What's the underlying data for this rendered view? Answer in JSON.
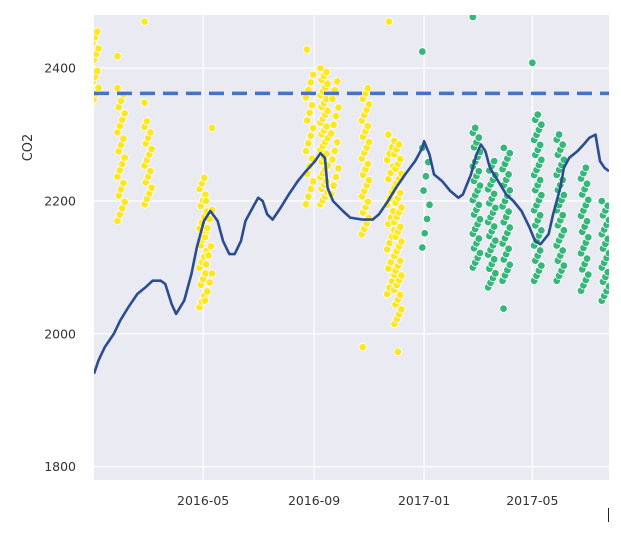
{
  "chart_data": {
    "type": "scatter",
    "title": "",
    "xlabel": "",
    "ylabel": "CO2",
    "xlim": [
      "2016-01-01",
      "2017-07-25"
    ],
    "ylim": [
      1780,
      2480
    ],
    "yticks": [
      1800,
      2000,
      2200,
      2400
    ],
    "xticks": [
      {
        "date": "2016-05-01",
        "label": "2016-05"
      },
      {
        "date": "2016-09-01",
        "label": "2016-09"
      },
      {
        "date": "2017-01-01",
        "label": "2017-01"
      },
      {
        "date": "2017-05-01",
        "label": "2017-05"
      }
    ],
    "grid": true,
    "colors": {
      "background": "#eaeaf2",
      "grid": "#ffffff",
      "yellow_points": "#fde725",
      "green_points": "#35b779",
      "line": "#2a4d8f",
      "threshold": "#4472c4"
    },
    "threshold": {
      "y": 2362,
      "style": "dashed"
    },
    "point_clusters": [
      {
        "date": "2016-01-02",
        "ymin": 2345,
        "ymax": 2455,
        "n": 14,
        "color": "yellow"
      },
      {
        "date": "2016-01-31",
        "ymin": 2170,
        "ymax": 2370,
        "n": 22,
        "color": "yellow"
      },
      {
        "date": "2016-01-31",
        "ymin": 2418,
        "ymax": 2422,
        "n": 1,
        "color": "yellow"
      },
      {
        "date": "2016-03-01",
        "ymin": 2195,
        "ymax": 2320,
        "n": 16,
        "color": "yellow"
      },
      {
        "date": "2016-03-01",
        "ymin": 2348,
        "ymax": 2350,
        "n": 1,
        "color": "yellow"
      },
      {
        "date": "2016-03-01",
        "ymin": 2470,
        "ymax": 2472,
        "n": 1,
        "color": "yellow"
      },
      {
        "date": "2016-05-01",
        "ymin": 2040,
        "ymax": 2235,
        "n": 24,
        "color": "yellow"
      },
      {
        "date": "2016-05-07",
        "ymin": 2050,
        "ymax": 2200,
        "n": 12,
        "color": "yellow"
      },
      {
        "date": "2016-05-15",
        "ymin": 2310,
        "ymax": 2312,
        "n": 1,
        "color": "yellow"
      },
      {
        "date": "2016-08-27",
        "ymin": 2195,
        "ymax": 2390,
        "n": 18,
        "color": "yellow"
      },
      {
        "date": "2016-08-28",
        "ymin": 2428,
        "ymax": 2430,
        "n": 1,
        "color": "yellow"
      },
      {
        "date": "2016-09-12",
        "ymin": 2195,
        "ymax": 2400,
        "n": 36,
        "color": "yellow"
      },
      {
        "date": "2016-09-24",
        "ymin": 2210,
        "ymax": 2380,
        "n": 14,
        "color": "yellow"
      },
      {
        "date": "2016-10-28",
        "ymin": 2150,
        "ymax": 2370,
        "n": 28,
        "color": "yellow"
      },
      {
        "date": "2016-10-29",
        "ymin": 1980,
        "ymax": 1982,
        "n": 1,
        "color": "yellow"
      },
      {
        "date": "2016-11-25",
        "ymin": 2060,
        "ymax": 2300,
        "n": 26,
        "color": "yellow"
      },
      {
        "date": "2016-12-03",
        "ymin": 2015,
        "ymax": 2285,
        "n": 38,
        "color": "yellow"
      },
      {
        "date": "2016-12-07",
        "ymin": 1973,
        "ymax": 1975,
        "n": 1,
        "color": "yellow"
      },
      {
        "date": "2016-11-27",
        "ymin": 2470,
        "ymax": 2472,
        "n": 1,
        "color": "yellow"
      },
      {
        "date": "2017-01-03",
        "ymin": 2130,
        "ymax": 2280,
        "n": 8,
        "color": "green"
      },
      {
        "date": "2017-01-03",
        "ymin": 2425,
        "ymax": 2427,
        "n": 1,
        "color": "green"
      },
      {
        "date": "2017-02-28",
        "ymin": 2100,
        "ymax": 2310,
        "n": 30,
        "color": "green"
      },
      {
        "date": "2017-02-28",
        "ymin": 2477,
        "ymax": 2479,
        "n": 1,
        "color": "green"
      },
      {
        "date": "2017-03-17",
        "ymin": 2070,
        "ymax": 2260,
        "n": 28,
        "color": "green"
      },
      {
        "date": "2017-04-02",
        "ymin": 2080,
        "ymax": 2280,
        "n": 26,
        "color": "green"
      },
      {
        "date": "2017-04-03",
        "ymin": 2038,
        "ymax": 2040,
        "n": 1,
        "color": "green"
      },
      {
        "date": "2017-05-07",
        "ymin": 2080,
        "ymax": 2330,
        "n": 34,
        "color": "green"
      },
      {
        "date": "2017-05-05",
        "ymin": 2408,
        "ymax": 2410,
        "n": 1,
        "color": "green"
      },
      {
        "date": "2017-06-01",
        "ymin": 2080,
        "ymax": 2300,
        "n": 30,
        "color": "green"
      },
      {
        "date": "2017-06-28",
        "ymin": 2065,
        "ymax": 2250,
        "n": 24,
        "color": "green"
      },
      {
        "date": "2017-07-21",
        "ymin": 2050,
        "ymax": 2200,
        "n": 22,
        "color": "green"
      }
    ],
    "series": [
      {
        "type": "line",
        "points": [
          [
            "2016-01-01",
            1940
          ],
          [
            "2016-01-06",
            1960
          ],
          [
            "2016-01-13",
            1980
          ],
          [
            "2016-01-23",
            2000
          ],
          [
            "2016-01-30",
            2020
          ],
          [
            "2016-02-08",
            2040
          ],
          [
            "2016-02-18",
            2060
          ],
          [
            "2016-02-27",
            2070
          ],
          [
            "2016-03-06",
            2080
          ],
          [
            "2016-03-15",
            2080
          ],
          [
            "2016-03-20",
            2075
          ],
          [
            "2016-03-27",
            2045
          ],
          [
            "2016-04-01",
            2030
          ],
          [
            "2016-04-10",
            2050
          ],
          [
            "2016-04-18",
            2090
          ],
          [
            "2016-04-24",
            2130
          ],
          [
            "2016-05-02",
            2170
          ],
          [
            "2016-05-09",
            2185
          ],
          [
            "2016-05-17",
            2170
          ],
          [
            "2016-05-23",
            2140
          ],
          [
            "2016-05-30",
            2120
          ],
          [
            "2016-06-05",
            2120
          ],
          [
            "2016-06-12",
            2140
          ],
          [
            "2016-06-17",
            2170
          ],
          [
            "2016-06-25",
            2190
          ],
          [
            "2016-07-01",
            2205
          ],
          [
            "2016-07-06",
            2200
          ],
          [
            "2016-07-11",
            2180
          ],
          [
            "2016-07-17",
            2172
          ],
          [
            "2016-07-26",
            2190
          ],
          [
            "2016-08-04",
            2210
          ],
          [
            "2016-08-14",
            2230
          ],
          [
            "2016-08-23",
            2245
          ],
          [
            "2016-09-02",
            2260
          ],
          [
            "2016-09-08",
            2272
          ],
          [
            "2016-09-13",
            2265
          ],
          [
            "2016-09-16",
            2220
          ],
          [
            "2016-09-22",
            2200
          ],
          [
            "2016-10-03",
            2185
          ],
          [
            "2016-10-11",
            2175
          ],
          [
            "2016-10-25",
            2172
          ],
          [
            "2016-11-05",
            2172
          ],
          [
            "2016-11-12",
            2180
          ],
          [
            "2016-11-22",
            2200
          ],
          [
            "2016-12-01",
            2220
          ],
          [
            "2016-12-11",
            2240
          ],
          [
            "2016-12-22",
            2260
          ],
          [
            "2016-12-30",
            2280
          ],
          [
            "2017-01-01",
            2290
          ],
          [
            "2017-01-07",
            2270
          ],
          [
            "2017-01-12",
            2240
          ],
          [
            "2017-01-21",
            2230
          ],
          [
            "2017-01-30",
            2215
          ],
          [
            "2017-02-08",
            2205
          ],
          [
            "2017-02-13",
            2210
          ],
          [
            "2017-02-22",
            2240
          ],
          [
            "2017-02-28",
            2270
          ],
          [
            "2017-03-05",
            2285
          ],
          [
            "2017-03-10",
            2275
          ],
          [
            "2017-03-15",
            2250
          ],
          [
            "2017-03-24",
            2230
          ],
          [
            "2017-04-02",
            2210
          ],
          [
            "2017-04-10",
            2200
          ],
          [
            "2017-04-19",
            2185
          ],
          [
            "2017-04-28",
            2160
          ],
          [
            "2017-05-04",
            2140
          ],
          [
            "2017-05-10",
            2135
          ],
          [
            "2017-05-19",
            2150
          ],
          [
            "2017-05-24",
            2180
          ],
          [
            "2017-06-01",
            2220
          ],
          [
            "2017-06-05",
            2250
          ],
          [
            "2017-06-11",
            2265
          ],
          [
            "2017-06-20",
            2275
          ],
          [
            "2017-06-27",
            2285
          ],
          [
            "2017-07-03",
            2295
          ],
          [
            "2017-07-10",
            2300
          ],
          [
            "2017-07-15",
            2260
          ],
          [
            "2017-07-20",
            2250
          ],
          [
            "2017-07-25",
            2245
          ]
        ]
      }
    ]
  }
}
